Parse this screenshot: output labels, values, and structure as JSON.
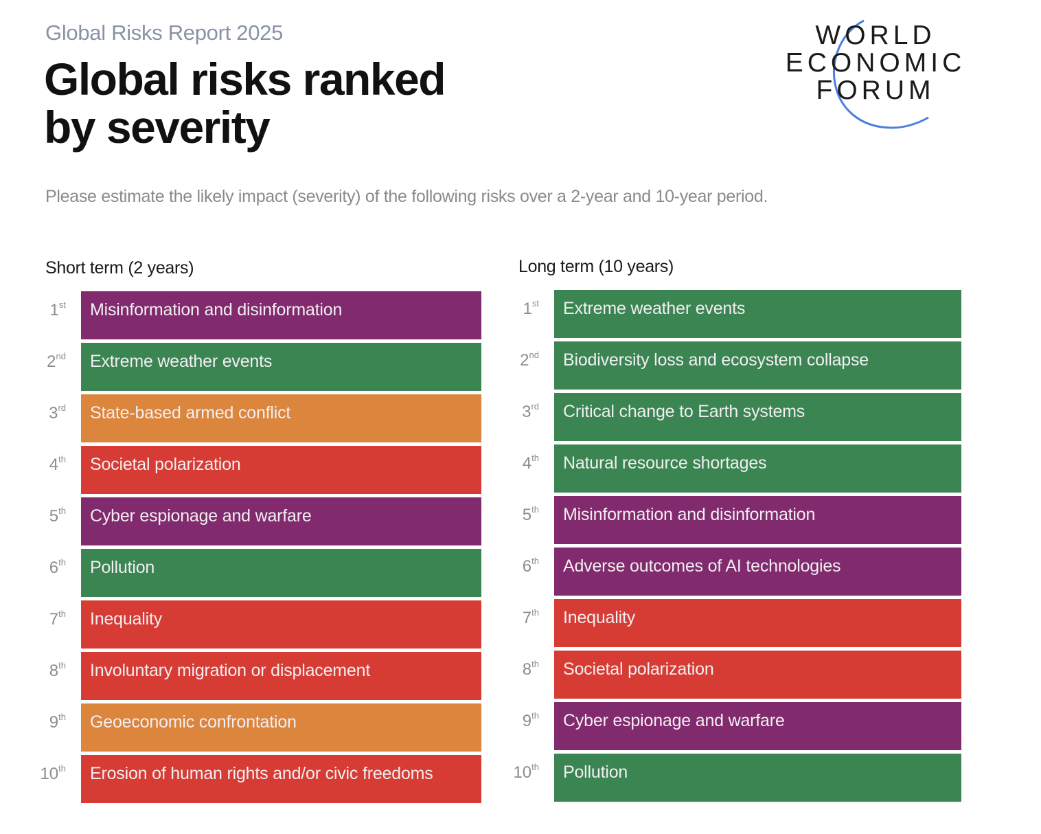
{
  "header": {
    "report": "Global Risks Report 2025",
    "title_line1": "Global risks ranked",
    "title_line2": "by severity",
    "subtitle": "Please estimate the likely impact (severity) of the following risks over a 2-year and 10-year period."
  },
  "logo": {
    "line1": "WORLD",
    "line2": "ECONOMIC",
    "line3": "FORUM",
    "arc_color": "#4a7fe0"
  },
  "colors": {
    "technological": "#812a6d",
    "environmental": "#3a8551",
    "geopolitical": "#db853d",
    "societal": "#d63c33"
  },
  "chart_data": {
    "type": "table",
    "title": "Global risks ranked by severity",
    "columns": [
      {
        "heading": "Short term (2 years)",
        "rows": [
          {
            "rank": "1",
            "suffix": "st",
            "label": "Misinformation and disinformation",
            "category": "technological"
          },
          {
            "rank": "2",
            "suffix": "nd",
            "label": "Extreme weather events",
            "category": "environmental"
          },
          {
            "rank": "3",
            "suffix": "rd",
            "label": "State-based armed conflict",
            "category": "geopolitical"
          },
          {
            "rank": "4",
            "suffix": "th",
            "label": "Societal polarization",
            "category": "societal"
          },
          {
            "rank": "5",
            "suffix": "th",
            "label": "Cyber espionage and warfare",
            "category": "technological"
          },
          {
            "rank": "6",
            "suffix": "th",
            "label": "Pollution",
            "category": "environmental"
          },
          {
            "rank": "7",
            "suffix": "th",
            "label": "Inequality",
            "category": "societal"
          },
          {
            "rank": "8",
            "suffix": "th",
            "label": "Involuntary migration or displacement",
            "category": "societal"
          },
          {
            "rank": "9",
            "suffix": "th",
            "label": "Geoeconomic confrontation",
            "category": "geopolitical"
          },
          {
            "rank": "10",
            "suffix": "th",
            "label": "Erosion of human rights and/or civic freedoms",
            "category": "societal"
          }
        ]
      },
      {
        "heading": "Long term (10 years)",
        "rows": [
          {
            "rank": "1",
            "suffix": "st",
            "label": "Extreme weather events",
            "category": "environmental"
          },
          {
            "rank": "2",
            "suffix": "nd",
            "label": "Biodiversity loss and ecosystem collapse",
            "category": "environmental"
          },
          {
            "rank": "3",
            "suffix": "rd",
            "label": "Critical change to Earth systems",
            "category": "environmental"
          },
          {
            "rank": "4",
            "suffix": "th",
            "label": "Natural resource shortages",
            "category": "environmental"
          },
          {
            "rank": "5",
            "suffix": "th",
            "label": "Misinformation and disinformation",
            "category": "technological"
          },
          {
            "rank": "6",
            "suffix": "th",
            "label": "Adverse outcomes of AI technologies",
            "category": "technological"
          },
          {
            "rank": "7",
            "suffix": "th",
            "label": "Inequality",
            "category": "societal"
          },
          {
            "rank": "8",
            "suffix": "th",
            "label": "Societal polarization",
            "category": "societal"
          },
          {
            "rank": "9",
            "suffix": "th",
            "label": "Cyber espionage and warfare",
            "category": "technological"
          },
          {
            "rank": "10",
            "suffix": "th",
            "label": "Pollution",
            "category": "environmental"
          }
        ]
      }
    ]
  }
}
